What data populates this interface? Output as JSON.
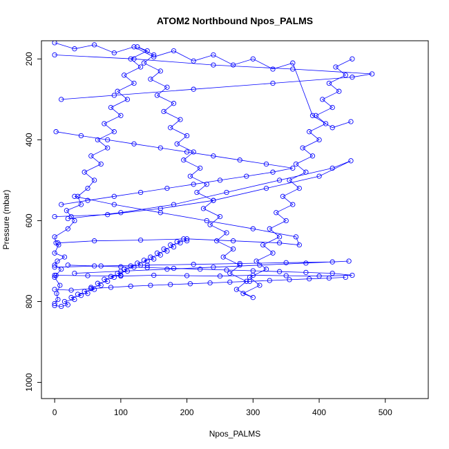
{
  "chart_data": {
    "type": "line",
    "title": "ATOM2 Northbound Npos_PALMS",
    "xlabel": "Npos_PALMS",
    "ylabel": "Pressure (mbar)",
    "xlim": [
      -20,
      565
    ],
    "ylim": [
      1040,
      155
    ],
    "x_ticks": [
      0,
      100,
      200,
      300,
      400,
      500
    ],
    "y_ticks": [
      200,
      400,
      600,
      800,
      1000
    ],
    "grid": false,
    "legend": "none",
    "color": "#0000ff",
    "series": [
      {
        "x": [
          0,
          5,
          3,
          8,
          0,
          2,
          10,
          0,
          4,
          15,
          0,
          6,
          2,
          0,
          20,
          30,
          25,
          18,
          40,
          35,
          50,
          60,
          45,
          70,
          55,
          80,
          65,
          90,
          75,
          100,
          85,
          110,
          95,
          120,
          105,
          130,
          115,
          140,
          125,
          150,
          135,
          160,
          145,
          170,
          155,
          180,
          165,
          190,
          175,
          200,
          185,
          210,
          195,
          220,
          205,
          230,
          215,
          240,
          225,
          250,
          235,
          260,
          245,
          270,
          255,
          280,
          265,
          290,
          275,
          300,
          285,
          310,
          295,
          320,
          305,
          330,
          315,
          340,
          325,
          350,
          335,
          360,
          345,
          370,
          355,
          380,
          365,
          390,
          375,
          400,
          385,
          410,
          395,
          420,
          405,
          430,
          415,
          440,
          425,
          450
        ],
        "y": [
          805,
          795,
          780,
          760,
          740,
          735,
          720,
          710,
          700,
          690,
          680,
          660,
          655,
          640,
          620,
          600,
          590,
          575,
          560,
          540,
          520,
          500,
          480,
          460,
          440,
          420,
          400,
          380,
          360,
          340,
          320,
          300,
          280,
          260,
          240,
          220,
          200,
          180,
          170,
          190,
          210,
          230,
          250,
          270,
          290,
          310,
          330,
          350,
          370,
          390,
          410,
          430,
          450,
          470,
          490,
          510,
          530,
          550,
          570,
          590,
          610,
          630,
          650,
          670,
          690,
          710,
          730,
          750,
          770,
          790,
          780,
          760,
          740,
          720,
          700,
          680,
          660,
          640,
          620,
          600,
          580,
          560,
          540,
          520,
          500,
          480,
          460,
          440,
          420,
          400,
          380,
          360,
          340,
          320,
          300,
          280,
          260,
          240,
          220,
          200
        ]
      },
      {
        "x": [
          0,
          10,
          20,
          15,
          30,
          25,
          40,
          35,
          50,
          45,
          60,
          55,
          70,
          65,
          80,
          75,
          90,
          85,
          100,
          95,
          110,
          105,
          120,
          115,
          130,
          125,
          140,
          135,
          150,
          145,
          160,
          155,
          170,
          165,
          180,
          175,
          190,
          185,
          200,
          195
        ],
        "y": [
          810,
          812,
          808,
          800,
          795,
          790,
          785,
          782,
          780,
          775,
          770,
          765,
          760,
          755,
          750,
          745,
          740,
          738,
          735,
          730,
          725,
          720,
          715,
          712,
          710,
          705,
          700,
          698,
          695,
          690,
          685,
          680,
          675,
          670,
          665,
          660,
          655,
          652,
          650,
          645
        ]
      },
      {
        "x": [
          0,
          50,
          100,
          150,
          200,
          250,
          300,
          350,
          400,
          450,
          420,
          380,
          340,
          300,
          260,
          220,
          180,
          140,
          100,
          60,
          20
        ],
        "y": [
          735,
          736,
          737,
          735,
          736,
          737,
          735,
          736,
          737,
          735,
          730,
          728,
          726,
          724,
          722,
          720,
          718,
          716,
          714,
          712,
          710
        ]
      },
      {
        "x": [
          0,
          120,
          240,
          360,
          480,
          450,
          330,
          210,
          90,
          10
        ],
        "y": [
          190,
          200,
          215,
          225,
          237,
          245,
          260,
          275,
          290,
          300
        ]
      },
      {
        "x": [
          0,
          80,
          160,
          240,
          320,
          400,
          448,
          420,
          340,
          260,
          180,
          100,
          20
        ],
        "y": [
          590,
          585,
          570,
          550,
          520,
          490,
          452,
          470,
          500,
          530,
          560,
          580,
          595
        ]
      },
      {
        "x": [
          5,
          60,
          130,
          200,
          270,
          340,
          370,
          365,
          300,
          230,
          160,
          90,
          30
        ],
        "y": [
          655,
          650,
          648,
          645,
          650,
          655,
          660,
          640,
          620,
          600,
          580,
          560,
          540
        ]
      },
      {
        "x": [
          0,
          70,
          140,
          210,
          280,
          350,
          420,
          445,
          380,
          310,
          240,
          170,
          100,
          30
        ],
        "y": [
          715,
          712,
          710,
          708,
          706,
          704,
          702,
          700,
          705,
          710,
          715,
          720,
          725,
          730
        ]
      },
      {
        "x": [
          2,
          40,
          80,
          120,
          160,
          200,
          240,
          280,
          320,
          360,
          330,
          290,
          250,
          210,
          170,
          130,
          90,
          50,
          10
        ],
        "y": [
          380,
          390,
          400,
          410,
          420,
          430,
          440,
          450,
          460,
          470,
          480,
          490,
          500,
          510,
          520,
          530,
          540,
          550,
          560
        ]
      },
      {
        "x": [
          0,
          30,
          60,
          90,
          120,
          150,
          180,
          210,
          240,
          270,
          300,
          330,
          360,
          390,
          420,
          448
        ],
        "y": [
          160,
          175,
          165,
          185,
          170,
          195,
          180,
          205,
          190,
          215,
          200,
          225,
          210,
          340,
          370,
          355
        ]
      },
      {
        "x": [
          0,
          25,
          55,
          85,
          115,
          145,
          175,
          205,
          235,
          265,
          295,
          325,
          355,
          385,
          415,
          440
        ],
        "y": [
          770,
          772,
          768,
          765,
          762,
          760,
          758,
          756,
          754,
          752,
          750,
          748,
          746,
          744,
          742,
          740
        ]
      }
    ]
  }
}
